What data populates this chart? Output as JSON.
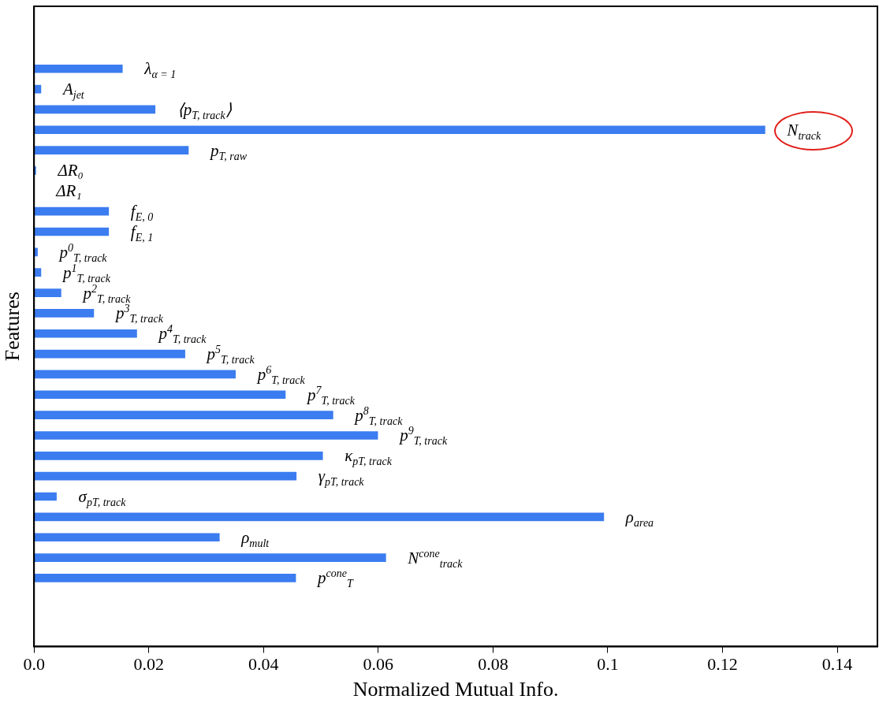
{
  "chart_data": {
    "type": "bar",
    "orientation": "horizontal",
    "xlabel": "Normalized Mutual Info.",
    "ylabel": "Features",
    "categories": [
      "λ$_{α = 1}$",
      "A$_{jet}$",
      "⟨p$_{T, track}$⟩",
      "N$_{track}$",
      "p$_{T, raw}$",
      "ΔR₀",
      "ΔR₁",
      "f$_{E, 0}$",
      "f$_{E, 1}$",
      "p$^{0}$$_{T, track}$",
      "p$^{1}$$_{T, track}$",
      "p$^{2}$$_{T, track}$",
      "p$^{3}$$_{T, track}$",
      "p$^{4}$$_{T, track}$",
      "p$^{5}$$_{T, track}$",
      "p$^{6}$$_{T, track}$",
      "p$^{7}$$_{T, track}$",
      "p$^{8}$$_{T, track}$",
      "p$^{9}$$_{T, track}$",
      "κ$_{pT, track}$",
      "γ$_{pT, track}$",
      "σ$_{pT, track}$",
      "ρ$_{area}$",
      "ρ$_{mult}$",
      "N$^{cone}$$_{track}$",
      "p$^{cone}$$_{T}$"
    ],
    "values": [
      0.0154,
      0.0012,
      0.0211,
      0.1274,
      0.0269,
      0.0003,
      0,
      0.013,
      0.013,
      0.0006,
      0.0012,
      0.0047,
      0.0104,
      0.0179,
      0.0263,
      0.0351,
      0.0438,
      0.0521,
      0.0599,
      0.0503,
      0.0457,
      0.0039,
      0.0993,
      0.0323,
      0.0613,
      0.0456
    ],
    "color": "#3b7cf0",
    "xlim": [
      0,
      0.147
    ],
    "xticks": [
      {
        "value": 0,
        "label": "0.0"
      },
      0.02,
      0.04,
      0.06,
      0.08,
      0.1,
      0.12,
      0.14
    ],
    "grid": false,
    "tick_labels": "x"
  }
}
